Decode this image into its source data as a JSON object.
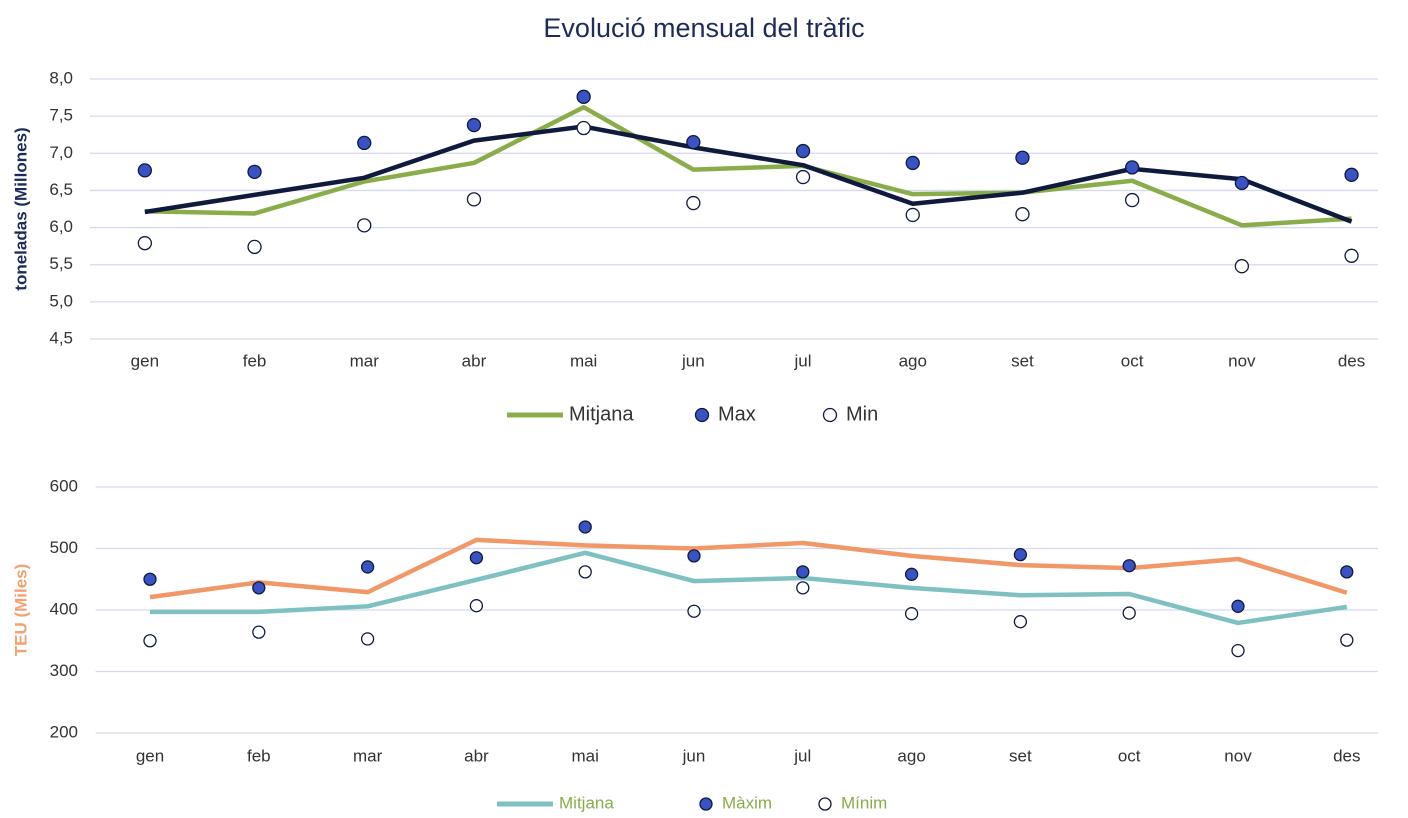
{
  "chart_data": [
    {
      "type": "line",
      "title": "Evolució mensual del tràfic",
      "ylabel": "toneladas (Millones)",
      "legend": "bottom",
      "grid": true,
      "categories": [
        "gen",
        "feb",
        "mar",
        "abr",
        "mai",
        "jun",
        "jul",
        "ago",
        "set",
        "oct",
        "nov",
        "des"
      ],
      "ylim": [
        4.5,
        8.0
      ],
      "yticks": [
        {
          "value": 4.5,
          "label": "4,5"
        },
        {
          "value": 5.0,
          "label": "5,0"
        },
        {
          "value": 5.5,
          "label": "5,5"
        },
        {
          "value": 6.0,
          "label": "6,0"
        },
        {
          "value": 6.5,
          "label": "6,5"
        },
        {
          "value": 7.0,
          "label": "7,0"
        },
        {
          "value": 7.5,
          "label": "7,5"
        },
        {
          "value": 8.0,
          "label": "8,0"
        }
      ],
      "series": [
        {
          "name": "Mitjana",
          "color": "#8aac4a",
          "kind": "line",
          "values": [
            6.22,
            6.19,
            6.62,
            6.87,
            7.62,
            6.78,
            6.83,
            6.45,
            6.47,
            6.63,
            6.03,
            6.12
          ]
        },
        {
          "color": "#0f1a3c",
          "kind": "line",
          "values": [
            6.21,
            6.44,
            6.67,
            7.17,
            7.36,
            7.08,
            6.84,
            6.32,
            6.47,
            6.79,
            6.65,
            6.08
          ]
        },
        {
          "name": "Max",
          "color": "#3a53c4",
          "kind": "marker",
          "values": [
            6.77,
            6.75,
            7.14,
            7.38,
            7.76,
            7.15,
            7.03,
            6.87,
            6.94,
            6.81,
            6.6,
            6.71
          ]
        },
        {
          "name": "Min",
          "color": "#ffffff",
          "kind": "marker",
          "values": [
            5.79,
            5.74,
            6.03,
            6.38,
            7.34,
            6.33,
            6.68,
            6.17,
            6.18,
            6.37,
            5.48,
            5.62
          ]
        }
      ]
    },
    {
      "type": "line",
      "ylabel": "TEU (Miles)",
      "legend": "bottom",
      "grid": true,
      "categories": [
        "gen",
        "feb",
        "mar",
        "abr",
        "mai",
        "jun",
        "jul",
        "ago",
        "set",
        "oct",
        "nov",
        "des"
      ],
      "ylim": [
        200,
        600
      ],
      "yticks": [
        200,
        300,
        400,
        500,
        600
      ],
      "series": [
        {
          "color": "#f09868",
          "kind": "line",
          "values": [
            421,
            445,
            429,
            514,
            505,
            500,
            509,
            488,
            473,
            468,
            483,
            428
          ]
        },
        {
          "name": "Mitjana",
          "color": "#7fc0c0",
          "kind": "line",
          "values": [
            397,
            397,
            406,
            449,
            493,
            447,
            452,
            436,
            424,
            426,
            379,
            405
          ]
        },
        {
          "name": "Màxim",
          "color": "#3a53c4",
          "kind": "marker",
          "values": [
            450,
            436,
            470,
            485,
            535,
            488,
            462,
            458,
            490,
            472,
            406,
            462
          ]
        },
        {
          "name": "Mínim",
          "color": "#ffffff",
          "kind": "marker",
          "values": [
            350,
            364,
            353,
            407,
            462,
            398,
            436,
            394,
            381,
            395,
            334,
            351
          ]
        }
      ]
    }
  ]
}
